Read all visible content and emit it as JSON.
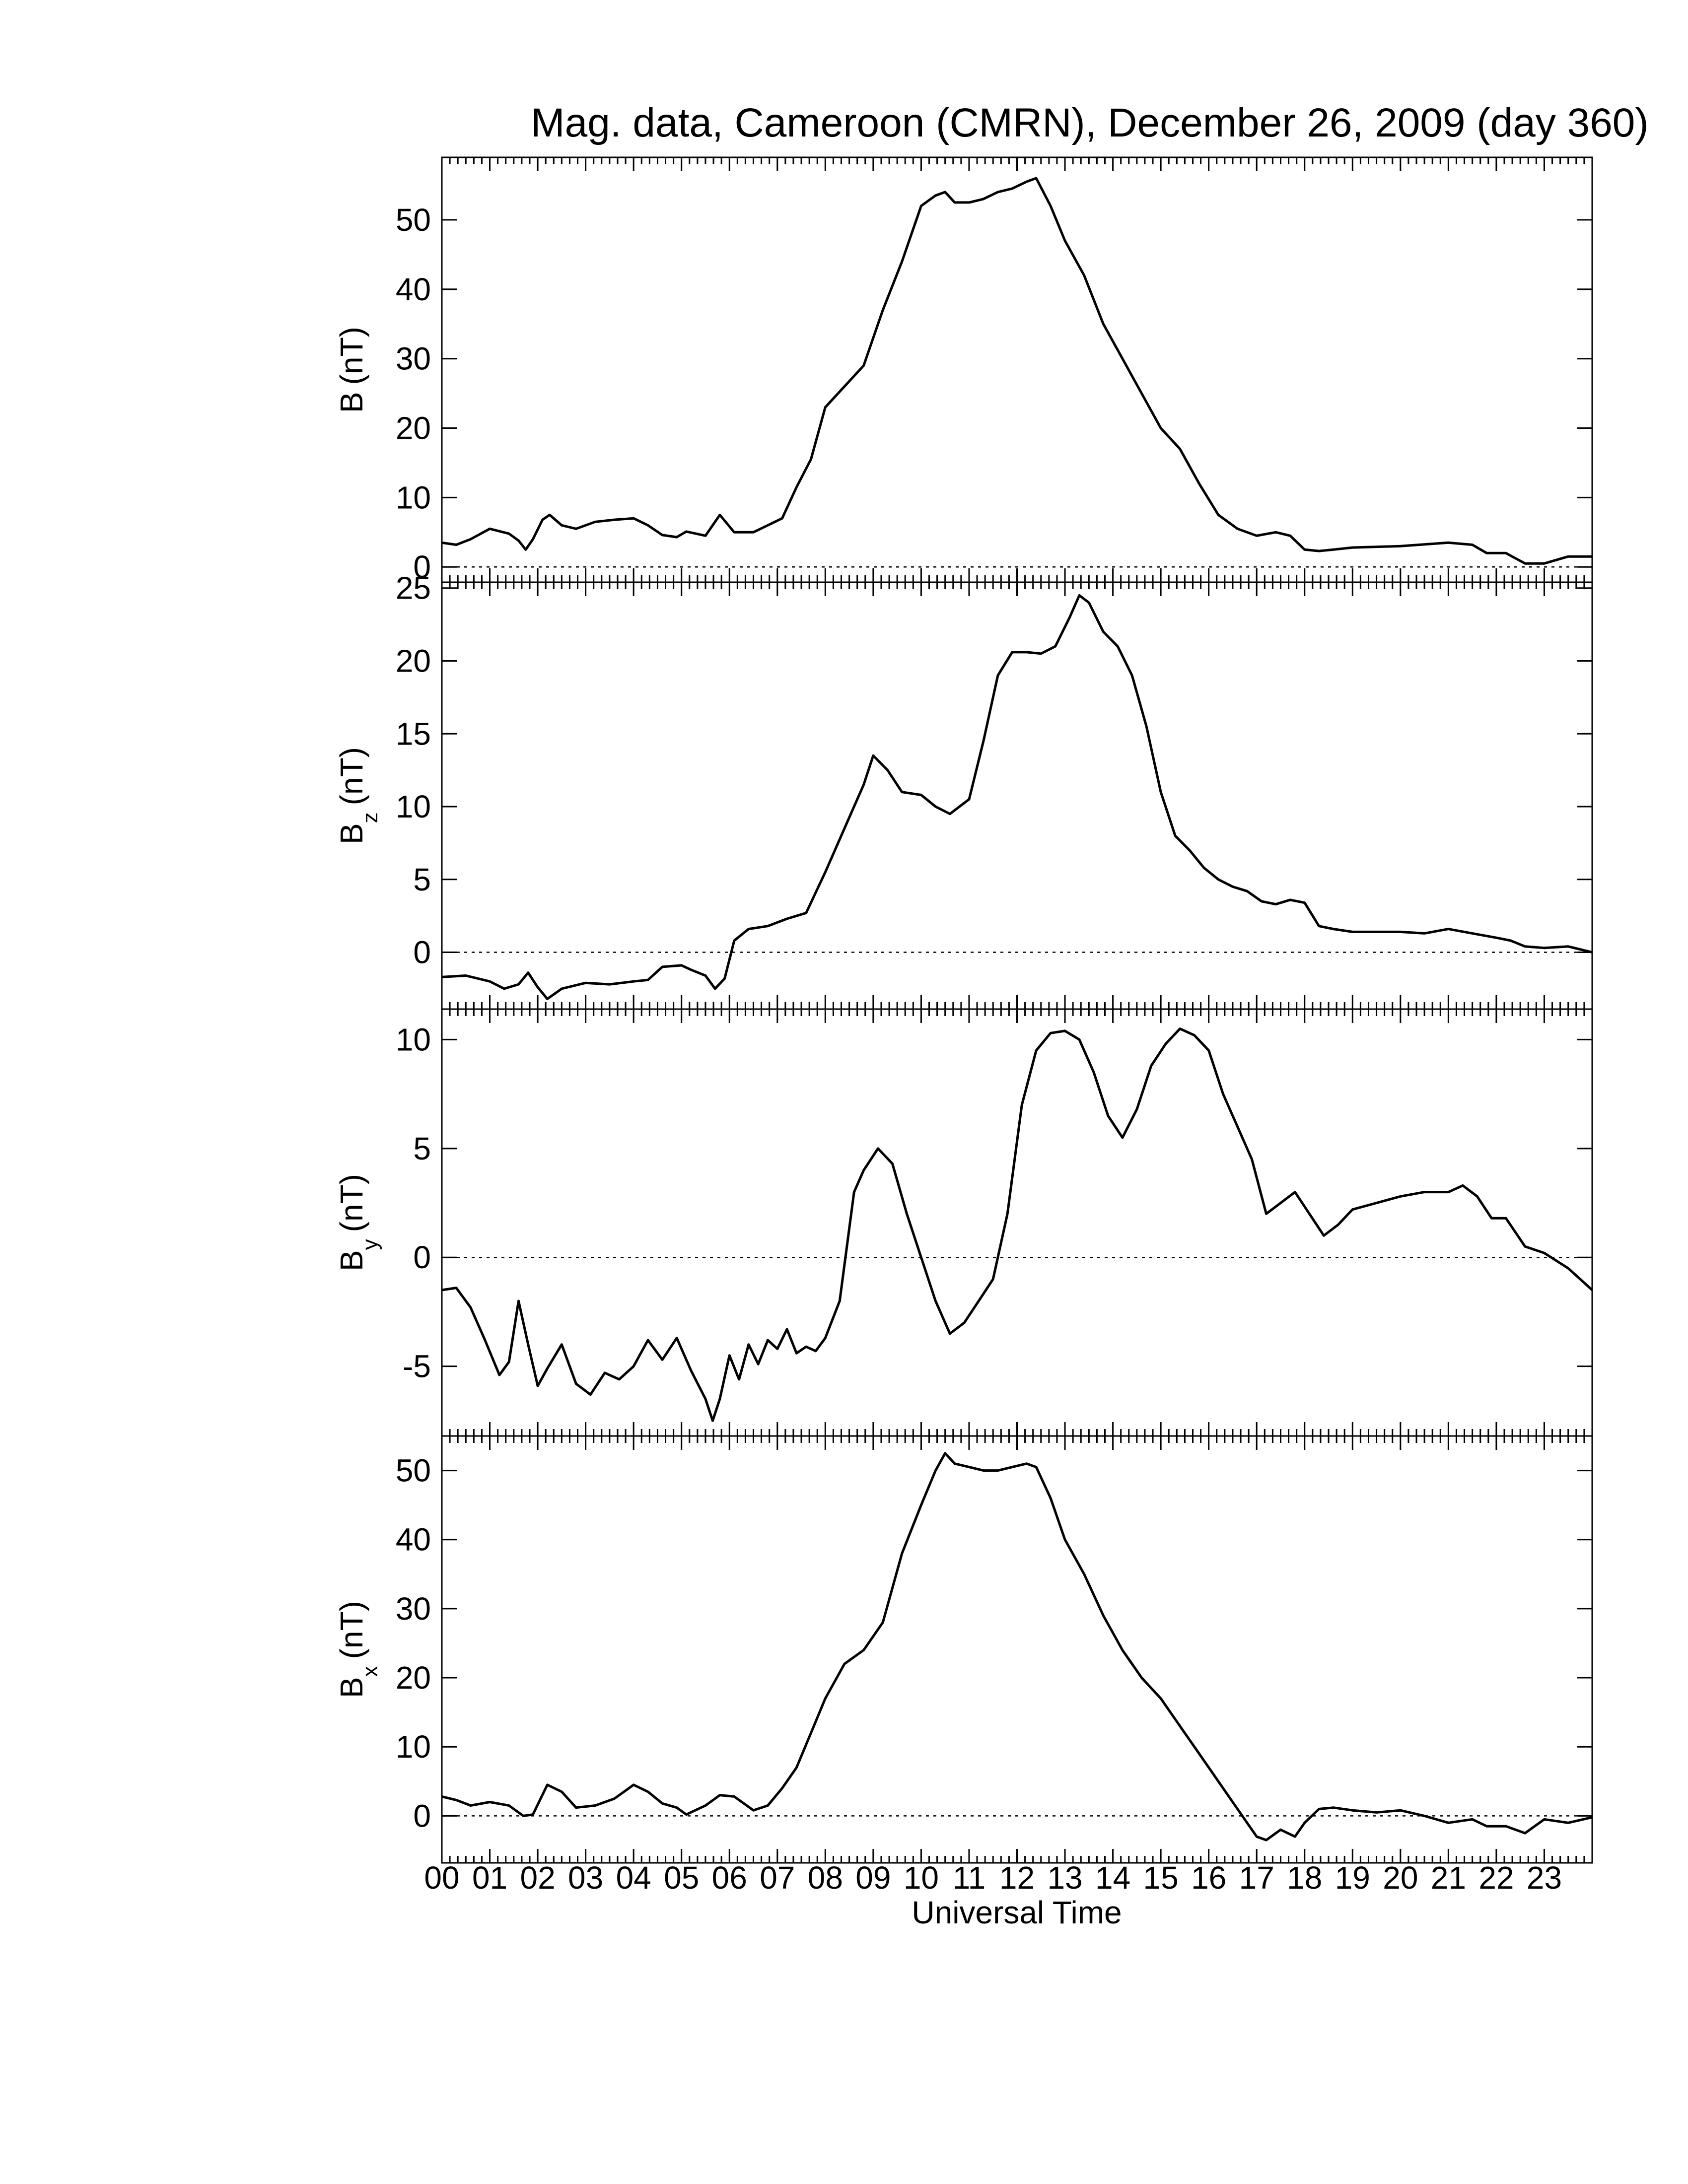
{
  "figure": {
    "title": "Mag. data, Cameroon (CMRN), December 26, 2009 (day 360)",
    "xlabel": "Universal Time",
    "x_tick_labels": [
      "00",
      "01",
      "02",
      "03",
      "04",
      "05",
      "06",
      "07",
      "08",
      "09",
      "10",
      "11",
      "12",
      "13",
      "14",
      "15",
      "16",
      "17",
      "18",
      "19",
      "20",
      "21",
      "22",
      "23"
    ]
  },
  "chart_data": [
    {
      "type": "line",
      "name": "B",
      "ylabel_main": "B",
      "ylabel_sub": "",
      "ylabel_unit": "(nT)",
      "ylim": [
        -2.2,
        59
      ],
      "yticks": [
        0,
        10,
        20,
        30,
        40,
        50
      ],
      "ytick_labels": [
        "0",
        "10",
        "20",
        "30",
        "40",
        "50"
      ],
      "zero_line": true,
      "x_hours": [
        0,
        0.3,
        0.6,
        1,
        1.4,
        1.6,
        1.75,
        1.9,
        2.1,
        2.25,
        2.5,
        2.8,
        3.2,
        3.6,
        4,
        4.3,
        4.6,
        4.9,
        5.1,
        5.5,
        5.8,
        6.1,
        6.5,
        6.8,
        7.1,
        7.4,
        7.7,
        8,
        8.4,
        8.8,
        9.2,
        9.6,
        10,
        10.3,
        10.5,
        10.7,
        11,
        11.3,
        11.6,
        11.9,
        12.2,
        12.4,
        12.7,
        13,
        13.4,
        13.8,
        14.2,
        14.6,
        15,
        15.4,
        15.8,
        16.2,
        16.6,
        17,
        17.4,
        17.7,
        18,
        18.3,
        18.6,
        19,
        20,
        21,
        21.5,
        21.8,
        22.2,
        22.6,
        23,
        23.5,
        24
      ],
      "values": [
        3.5,
        3.2,
        4,
        5.5,
        4.8,
        3.8,
        2.5,
        4,
        6.8,
        7.5,
        6,
        5.5,
        6.5,
        6.8,
        7,
        6,
        4.6,
        4.3,
        5.1,
        4.5,
        7.5,
        5,
        5,
        6,
        7,
        11.5,
        15.5,
        23,
        26,
        29,
        37,
        44,
        52,
        53.5,
        54,
        52.5,
        52.5,
        53,
        54,
        54.5,
        55.5,
        56,
        52,
        47,
        42,
        35,
        30,
        25,
        20,
        17,
        12,
        7.5,
        5.5,
        4.5,
        5,
        4.5,
        2.5,
        2.3,
        2.5,
        2.8,
        3,
        3.5,
        3.2,
        2,
        2,
        0.5,
        0.5,
        1.5,
        1.5
      ]
    },
    {
      "type": "line",
      "name": "Bz",
      "ylabel_main": "B",
      "ylabel_sub": "z",
      "ylabel_unit": "(nT)",
      "ylim": [
        -3.9,
        25.4
      ],
      "yticks": [
        0,
        5,
        10,
        15,
        20,
        25
      ],
      "ytick_labels": [
        "0",
        "5",
        "10",
        "15",
        "20",
        "25"
      ],
      "zero_line": true,
      "x_hours": [
        0,
        0.5,
        1,
        1.3,
        1.6,
        1.8,
        2,
        2.2,
        2.5,
        3,
        3.5,
        4,
        4.3,
        4.6,
        5,
        5.2,
        5.5,
        5.7,
        5.9,
        6.1,
        6.4,
        6.8,
        7.2,
        7.6,
        8,
        8.4,
        8.8,
        9,
        9.3,
        9.6,
        10,
        10.3,
        10.6,
        11,
        11.3,
        11.6,
        11.9,
        12.2,
        12.5,
        12.8,
        13.1,
        13.3,
        13.5,
        13.8,
        14.1,
        14.4,
        14.7,
        15,
        15.3,
        15.6,
        15.9,
        16.2,
        16.5,
        16.8,
        17.1,
        17.4,
        17.7,
        18,
        18.3,
        18.6,
        19,
        19.5,
        20,
        20.5,
        21,
        21.5,
        22,
        22.3,
        22.6,
        23,
        23.5,
        24
      ],
      "values": [
        -1.7,
        -1.6,
        -2,
        -2.5,
        -2.2,
        -1.4,
        -2.4,
        -3.2,
        -2.5,
        -2.1,
        -2.2,
        -2,
        -1.9,
        -1,
        -0.9,
        -1.2,
        -1.6,
        -2.5,
        -1.8,
        0.8,
        1.6,
        1.8,
        2.3,
        2.7,
        5.5,
        8.5,
        11.5,
        13.5,
        12.5,
        11,
        10.8,
        10,
        9.5,
        10.5,
        14.5,
        19,
        20.6,
        20.6,
        20.5,
        21,
        23,
        24.5,
        24,
        22,
        21,
        19,
        15.5,
        11,
        8,
        7,
        5.8,
        5,
        4.5,
        4.2,
        3.5,
        3.3,
        3.6,
        3.4,
        1.8,
        1.6,
        1.4,
        1.4,
        1.4,
        1.3,
        1.6,
        1.3,
        1,
        0.8,
        0.4,
        0.3,
        0.4,
        0
      ]
    },
    {
      "type": "line",
      "name": "By",
      "ylabel_main": "B",
      "ylabel_sub": "y",
      "ylabel_unit": "(nT)",
      "ylim": [
        -8.2,
        11.4
      ],
      "yticks": [
        -5,
        0,
        5,
        10
      ],
      "ytick_labels": [
        "-5",
        "0",
        "5",
        "10"
      ],
      "zero_line": true,
      "x_hours": [
        0,
        0.3,
        0.6,
        0.9,
        1.2,
        1.4,
        1.6,
        1.8,
        2,
        2.2,
        2.5,
        2.8,
        3.1,
        3.4,
        3.7,
        4,
        4.3,
        4.6,
        4.9,
        5.2,
        5.5,
        5.65,
        5.8,
        6,
        6.2,
        6.4,
        6.6,
        6.8,
        7,
        7.2,
        7.4,
        7.6,
        7.8,
        8,
        8.3,
        8.6,
        8.8,
        9.1,
        9.4,
        9.7,
        10,
        10.3,
        10.6,
        10.9,
        11.2,
        11.5,
        11.8,
        12.1,
        12.4,
        12.7,
        13,
        13.3,
        13.6,
        13.9,
        14.2,
        14.5,
        14.8,
        15.1,
        15.4,
        15.7,
        16,
        16.3,
        16.6,
        16.9,
        17.2,
        17.5,
        17.8,
        18.1,
        18.4,
        18.7,
        19,
        19.5,
        20,
        20.5,
        21,
        21.3,
        21.6,
        21.9,
        22.2,
        22.6,
        23,
        23.5,
        24
      ],
      "values": [
        -1.5,
        -1.4,
        -2.3,
        -3.8,
        -5.4,
        -4.8,
        -2,
        -4,
        -5.9,
        -5.1,
        -4,
        -5.8,
        -6.3,
        -5.3,
        -5.6,
        -5,
        -3.8,
        -4.7,
        -3.7,
        -5.2,
        -6.5,
        -7.5,
        -6.5,
        -4.5,
        -5.6,
        -4,
        -4.9,
        -3.8,
        -4.2,
        -3.3,
        -4.4,
        -4.1,
        -4.3,
        -3.7,
        -2,
        3,
        4,
        5,
        4.3,
        2,
        0,
        -2,
        -3.5,
        -3,
        -2,
        -1,
        2,
        7,
        9.5,
        10.3,
        10.4,
        10,
        8.5,
        6.5,
        5.5,
        6.8,
        8.8,
        9.8,
        10.5,
        10.2,
        9.5,
        7.5,
        6,
        4.5,
        2,
        2.5,
        3,
        2,
        1,
        1.5,
        2.2,
        2.5,
        2.8,
        3,
        3,
        3.3,
        2.8,
        1.8,
        1.8,
        0.5,
        0.2,
        -0.5,
        -1.5
      ]
    },
    {
      "type": "line",
      "name": "Bx",
      "ylabel_main": "B",
      "ylabel_sub": "x",
      "ylabel_unit": "(nT)",
      "ylim": [
        -6.8,
        55
      ],
      "yticks": [
        0,
        10,
        20,
        30,
        40,
        50
      ],
      "ytick_labels": [
        "0",
        "10",
        "20",
        "30",
        "40",
        "50"
      ],
      "zero_line": true,
      "x_hours": [
        0,
        0.3,
        0.6,
        1,
        1.4,
        1.7,
        1.9,
        2.2,
        2.5,
        2.8,
        3.2,
        3.6,
        4,
        4.3,
        4.6,
        4.9,
        5.1,
        5.5,
        5.8,
        6.1,
        6.5,
        6.8,
        7.1,
        7.4,
        7.7,
        8,
        8.4,
        8.8,
        9.2,
        9.6,
        10,
        10.3,
        10.5,
        10.7,
        11,
        11.3,
        11.6,
        11.9,
        12.2,
        12.4,
        12.7,
        13,
        13.4,
        13.8,
        14.2,
        14.6,
        15,
        15.4,
        15.8,
        16.2,
        16.6,
        17,
        17.2,
        17.5,
        17.8,
        18,
        18.3,
        18.6,
        19,
        19.5,
        20,
        20.5,
        21,
        21.5,
        21.8,
        22.2,
        22.6,
        23,
        23.5,
        24
      ],
      "values": [
        2.8,
        2.3,
        1.5,
        2,
        1.5,
        0,
        0.2,
        4.5,
        3.5,
        1.2,
        1.5,
        2.5,
        4.5,
        3.5,
        1.8,
        1.2,
        0.2,
        1.5,
        3,
        2.8,
        0.8,
        1.5,
        4,
        7,
        12,
        17,
        22,
        24,
        28,
        38,
        45,
        50,
        52.5,
        51,
        50.5,
        50,
        50,
        50.5,
        51,
        50.5,
        46,
        40,
        35,
        29,
        24,
        20,
        17,
        13,
        9,
        5,
        1,
        -3,
        -3.5,
        -2,
        -3,
        -1,
        1,
        1.2,
        0.8,
        0.5,
        0.8,
        0,
        -1,
        -0.5,
        -1.5,
        -1.5,
        -2.5,
        -0.5,
        -1,
        -0.2
      ]
    }
  ]
}
